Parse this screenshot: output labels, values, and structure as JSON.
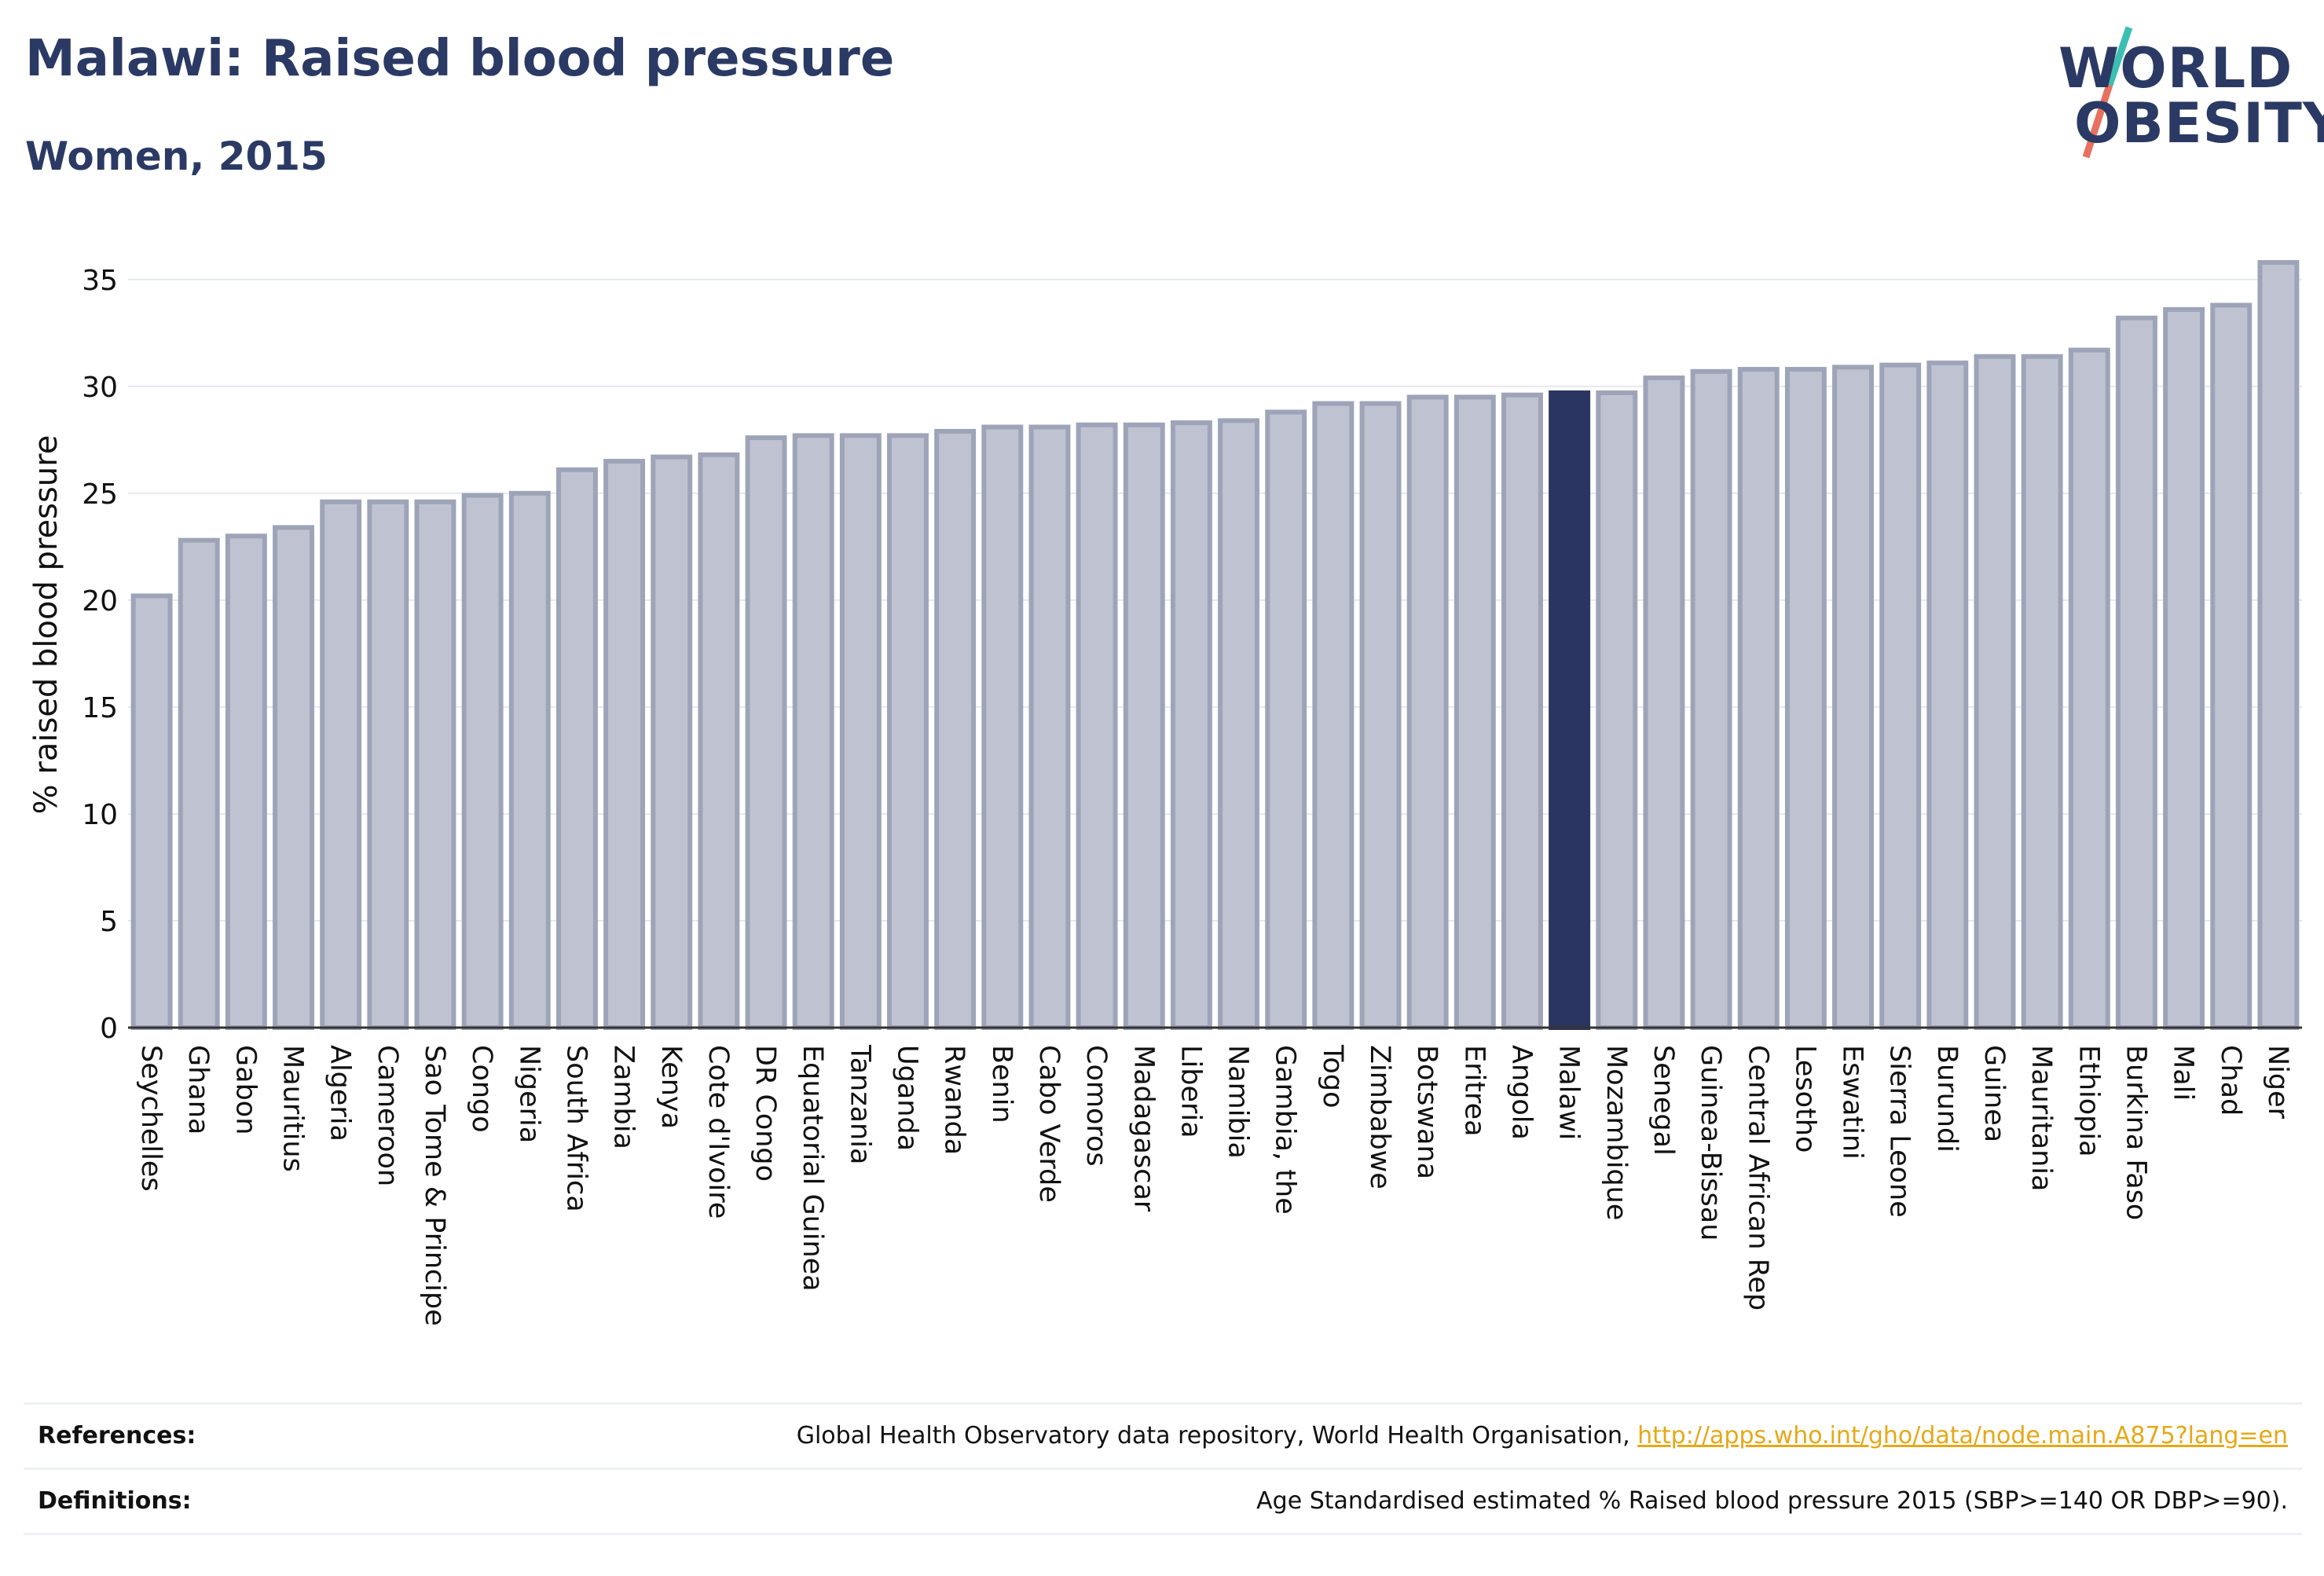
{
  "header": {
    "title": "Malawi: Raised blood pressure",
    "subtitle": "Women, 2015",
    "logo_line1": "WORLD",
    "logo_line2": "OBESITY"
  },
  "colors": {
    "bar": "#bfc3d1",
    "bar_border": "#9ea4b8",
    "highlight": "#2b3561",
    "logo_teal": "#3bbfb3",
    "logo_coral": "#e8705f",
    "link": "#e6a817"
  },
  "chart_data": {
    "type": "bar",
    "ylabel": "% raised blood pressure",
    "ylim": [
      0,
      36.5
    ],
    "yticks": [
      0,
      5,
      10,
      15,
      20,
      25,
      30,
      35
    ],
    "grid": true,
    "highlight": "Malawi",
    "categories": [
      "Seychelles",
      "Ghana",
      "Gabon",
      "Mauritius",
      "Algeria",
      "Cameroon",
      "Sao Tome & Principe",
      "Congo",
      "Nigeria",
      "South Africa",
      "Zambia",
      "Kenya",
      "Cote d'Ivoire",
      "DR Congo",
      "Equatorial Guinea",
      "Tanzania",
      "Uganda",
      "Rwanda",
      "Benin",
      "Cabo Verde",
      "Comoros",
      "Madagascar",
      "Liberia",
      "Namibia",
      "Gambia, the",
      "Togo",
      "Zimbabwe",
      "Botswana",
      "Eritrea",
      "Angola",
      "Malawi",
      "Mozambique",
      "Senegal",
      "Guinea-Bissau",
      "Central African Rep",
      "Lesotho",
      "Eswatini",
      "Sierra Leone",
      "Burundi",
      "Guinea",
      "Mauritania",
      "Ethiopia",
      "Burkina Faso",
      "Mali",
      "Chad",
      "Niger"
    ],
    "values": [
      20.2,
      22.8,
      23.0,
      23.4,
      24.6,
      24.6,
      24.6,
      24.9,
      25.0,
      26.1,
      26.5,
      26.7,
      26.8,
      27.6,
      27.7,
      27.7,
      27.7,
      27.9,
      28.1,
      28.1,
      28.2,
      28.2,
      28.3,
      28.4,
      28.8,
      29.2,
      29.2,
      29.5,
      29.5,
      29.6,
      29.7,
      29.7,
      30.4,
      30.7,
      30.8,
      30.8,
      30.9,
      31.0,
      31.1,
      31.4,
      31.4,
      31.7,
      33.2,
      33.6,
      33.8,
      35.8
    ]
  },
  "footer": {
    "references_label": "References:",
    "references_text": "Global Health Observatory data repository, World Health Organisation, ",
    "references_link": "http://apps.who.int/gho/data/node.main.A875?lang=en",
    "definitions_label": "Definitions:",
    "definitions_text": "Age Standardised estimated % Raised blood pressure 2015 (SBP>=140 OR DBP>=90)."
  }
}
